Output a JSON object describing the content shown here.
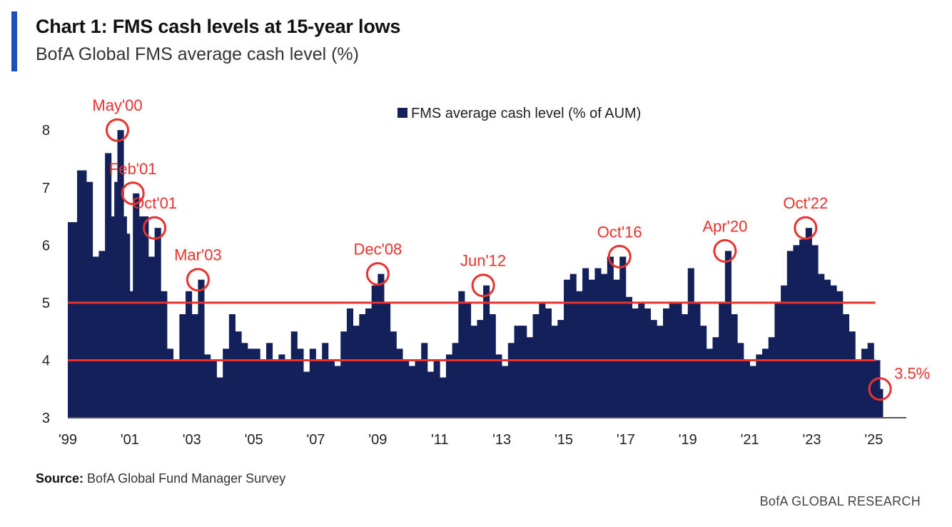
{
  "header": {
    "title": "Chart 1: FMS cash levels at 15-year lows",
    "subtitle": "BofA Global FMS average cash level (%)"
  },
  "footer": {
    "source_label": "Source:",
    "source_text": "BofA Global Fund Manager Survey",
    "brand": "BofA GLOBAL RESEARCH"
  },
  "colors": {
    "bars": "#14205a",
    "reference_lines": "#e8322d",
    "annotations": "#e8322d",
    "accent": "#1f4fb8"
  },
  "chart_data": {
    "type": "bar",
    "title": "",
    "xlabel": "",
    "ylabel": "",
    "ylim": [
      3,
      8.4
    ],
    "yticks": [
      3,
      4,
      5,
      6,
      7,
      8
    ],
    "xlim": [
      1999.0,
      2026.05
    ],
    "xticks": [
      {
        "label": "'99",
        "x": 1999.0
      },
      {
        "label": "'01",
        "x": 2001.0
      },
      {
        "label": "'03",
        "x": 2003.0
      },
      {
        "label": "'05",
        "x": 2005.0
      },
      {
        "label": "'07",
        "x": 2007.0
      },
      {
        "label": "'09",
        "x": 2009.0
      },
      {
        "label": "'11",
        "x": 2011.0
      },
      {
        "label": "'13",
        "x": 2013.0
      },
      {
        "label": "'15",
        "x": 2015.0
      },
      {
        "label": "'17",
        "x": 2017.0
      },
      {
        "label": "'19",
        "x": 2019.0
      },
      {
        "label": "'21",
        "x": 2021.0
      },
      {
        "label": "'23",
        "x": 2023.0
      },
      {
        "label": "'25",
        "x": 2025.0
      }
    ],
    "legend": {
      "label": "FMS average cash level (% of AUM)",
      "position": "top-center"
    },
    "reference_lines": [
      5,
      4
    ],
    "series": [
      {
        "name": "FMS average cash level (% of AUM)",
        "points": [
          [
            1999.0,
            6.4
          ],
          [
            1999.3,
            7.3
          ],
          [
            1999.6,
            7.1
          ],
          [
            1999.8,
            5.8
          ],
          [
            2000.0,
            5.9
          ],
          [
            2000.2,
            7.6
          ],
          [
            2000.4,
            6.5
          ],
          [
            2000.5,
            7.1
          ],
          [
            2000.6,
            8.0
          ],
          [
            2000.8,
            6.5
          ],
          [
            2000.9,
            6.2
          ],
          [
            2001.0,
            5.2
          ],
          [
            2001.1,
            6.9
          ],
          [
            2001.3,
            6.5
          ],
          [
            2001.6,
            5.8
          ],
          [
            2001.8,
            6.3
          ],
          [
            2002.0,
            5.2
          ],
          [
            2002.2,
            4.2
          ],
          [
            2002.4,
            4.0
          ],
          [
            2002.6,
            4.8
          ],
          [
            2002.8,
            5.2
          ],
          [
            2003.0,
            4.8
          ],
          [
            2003.2,
            5.4
          ],
          [
            2003.4,
            4.1
          ],
          [
            2003.6,
            4.0
          ],
          [
            2003.8,
            3.7
          ],
          [
            2004.0,
            4.2
          ],
          [
            2004.2,
            4.8
          ],
          [
            2004.4,
            4.5
          ],
          [
            2004.6,
            4.3
          ],
          [
            2004.8,
            4.2
          ],
          [
            2005.0,
            4.2
          ],
          [
            2005.2,
            4.0
          ],
          [
            2005.4,
            4.3
          ],
          [
            2005.6,
            4.0
          ],
          [
            2005.8,
            4.1
          ],
          [
            2006.0,
            4.0
          ],
          [
            2006.2,
            4.5
          ],
          [
            2006.4,
            4.2
          ],
          [
            2006.6,
            3.8
          ],
          [
            2006.8,
            4.2
          ],
          [
            2007.0,
            4.0
          ],
          [
            2007.2,
            4.3
          ],
          [
            2007.4,
            4.0
          ],
          [
            2007.6,
            3.9
          ],
          [
            2007.8,
            4.5
          ],
          [
            2008.0,
            4.9
          ],
          [
            2008.2,
            4.6
          ],
          [
            2008.4,
            4.8
          ],
          [
            2008.6,
            4.9
          ],
          [
            2008.8,
            5.3
          ],
          [
            2009.0,
            5.5
          ],
          [
            2009.2,
            5.0
          ],
          [
            2009.4,
            4.5
          ],
          [
            2009.6,
            4.2
          ],
          [
            2009.8,
            4.0
          ],
          [
            2010.0,
            3.9
          ],
          [
            2010.2,
            4.0
          ],
          [
            2010.4,
            4.3
          ],
          [
            2010.6,
            3.8
          ],
          [
            2010.8,
            4.0
          ],
          [
            2011.0,
            3.7
          ],
          [
            2011.2,
            4.1
          ],
          [
            2011.4,
            4.3
          ],
          [
            2011.6,
            5.2
          ],
          [
            2011.8,
            5.0
          ],
          [
            2012.0,
            4.6
          ],
          [
            2012.2,
            4.7
          ],
          [
            2012.4,
            5.3
          ],
          [
            2012.6,
            4.8
          ],
          [
            2012.8,
            4.1
          ],
          [
            2013.0,
            3.9
          ],
          [
            2013.2,
            4.3
          ],
          [
            2013.4,
            4.6
          ],
          [
            2013.6,
            4.6
          ],
          [
            2013.8,
            4.4
          ],
          [
            2014.0,
            4.8
          ],
          [
            2014.2,
            5.0
          ],
          [
            2014.4,
            4.9
          ],
          [
            2014.6,
            4.6
          ],
          [
            2014.8,
            4.7
          ],
          [
            2015.0,
            5.4
          ],
          [
            2015.2,
            5.5
          ],
          [
            2015.4,
            5.2
          ],
          [
            2015.6,
            5.6
          ],
          [
            2015.8,
            5.4
          ],
          [
            2016.0,
            5.6
          ],
          [
            2016.2,
            5.5
          ],
          [
            2016.4,
            5.8
          ],
          [
            2016.6,
            5.4
          ],
          [
            2016.8,
            5.8
          ],
          [
            2017.0,
            5.1
          ],
          [
            2017.2,
            4.9
          ],
          [
            2017.4,
            5.0
          ],
          [
            2017.6,
            4.9
          ],
          [
            2017.8,
            4.7
          ],
          [
            2018.0,
            4.6
          ],
          [
            2018.2,
            4.9
          ],
          [
            2018.4,
            5.0
          ],
          [
            2018.6,
            5.0
          ],
          [
            2018.8,
            4.8
          ],
          [
            2019.0,
            5.6
          ],
          [
            2019.2,
            5.0
          ],
          [
            2019.4,
            4.6
          ],
          [
            2019.6,
            4.2
          ],
          [
            2019.8,
            4.4
          ],
          [
            2020.0,
            5.0
          ],
          [
            2020.2,
            5.9
          ],
          [
            2020.4,
            4.8
          ],
          [
            2020.6,
            4.3
          ],
          [
            2020.8,
            4.0
          ],
          [
            2021.0,
            3.9
          ],
          [
            2021.2,
            4.1
          ],
          [
            2021.4,
            4.2
          ],
          [
            2021.6,
            4.4
          ],
          [
            2021.8,
            5.0
          ],
          [
            2022.0,
            5.3
          ],
          [
            2022.2,
            5.9
          ],
          [
            2022.4,
            6.0
          ],
          [
            2022.6,
            6.1
          ],
          [
            2022.8,
            6.3
          ],
          [
            2023.0,
            6.0
          ],
          [
            2023.2,
            5.5
          ],
          [
            2023.4,
            5.4
          ],
          [
            2023.6,
            5.3
          ],
          [
            2023.8,
            5.2
          ],
          [
            2024.0,
            4.8
          ],
          [
            2024.2,
            4.5
          ],
          [
            2024.4,
            4.0
          ],
          [
            2024.6,
            4.2
          ],
          [
            2024.8,
            4.3
          ],
          [
            2025.0,
            4.0
          ],
          [
            2025.2,
            3.5
          ]
        ]
      }
    ],
    "annotations": [
      {
        "label": "May'00",
        "x": 2000.6,
        "y": 8.0
      },
      {
        "label": "Feb'01",
        "x": 2001.1,
        "y": 6.9
      },
      {
        "label": "Oct'01",
        "x": 2001.8,
        "y": 6.3
      },
      {
        "label": "Mar'03",
        "x": 2003.2,
        "y": 5.4
      },
      {
        "label": "Dec'08",
        "x": 2009.0,
        "y": 5.5
      },
      {
        "label": "Jun'12",
        "x": 2012.4,
        "y": 5.3
      },
      {
        "label": "Oct'16",
        "x": 2016.8,
        "y": 5.8
      },
      {
        "label": "Apr'20",
        "x": 2020.2,
        "y": 5.9
      },
      {
        "label": "Oct'22",
        "x": 2022.8,
        "y": 6.3
      },
      {
        "label": "3.5%",
        "x": 2025.2,
        "y": 3.5
      }
    ]
  }
}
